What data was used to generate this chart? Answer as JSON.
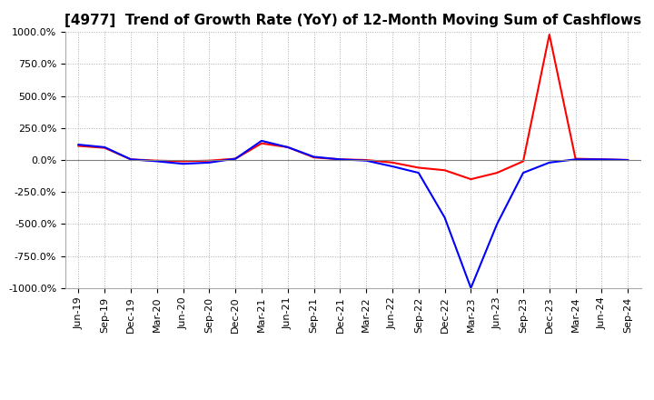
{
  "title": "[4977]  Trend of Growth Rate (YoY) of 12-Month Moving Sum of Cashflows",
  "ylim": [
    -1000,
    1000
  ],
  "yticks": [
    1000.0,
    750.0,
    500.0,
    250.0,
    0.0,
    -250.0,
    -500.0,
    -750.0,
    -1000.0
  ],
  "ytick_labels": [
    "1000.0%",
    "750.0%",
    "500.0%",
    "250.0%",
    "0.0%",
    "-250.0%",
    "-500.0%",
    "-750.0%",
    "-1000.0%"
  ],
  "x_labels": [
    "Jun-19",
    "Sep-19",
    "Dec-19",
    "Mar-20",
    "Jun-20",
    "Sep-20",
    "Dec-20",
    "Mar-21",
    "Jun-21",
    "Sep-21",
    "Dec-21",
    "Mar-22",
    "Jun-22",
    "Sep-22",
    "Dec-22",
    "Mar-23",
    "Jun-23",
    "Sep-23",
    "Dec-23",
    "Mar-24",
    "Jun-24",
    "Sep-24"
  ],
  "operating_cashflow": [
    110,
    95,
    5,
    -5,
    -10,
    -5,
    10,
    130,
    100,
    20,
    5,
    0,
    -20,
    -60,
    -80,
    -150,
    -100,
    -10,
    980,
    10,
    5,
    0
  ],
  "free_cashflow": [
    120,
    100,
    5,
    -10,
    -30,
    -20,
    10,
    150,
    100,
    25,
    5,
    -5,
    -50,
    -100,
    -450,
    -1000,
    -500,
    -100,
    -20,
    5,
    5,
    0
  ],
  "operating_color": "#ff0000",
  "free_color": "#0000ff",
  "background_color": "#ffffff",
  "grid_color": "#b0b0b0",
  "title_fontsize": 11,
  "tick_fontsize": 8,
  "legend_fontsize": 9
}
